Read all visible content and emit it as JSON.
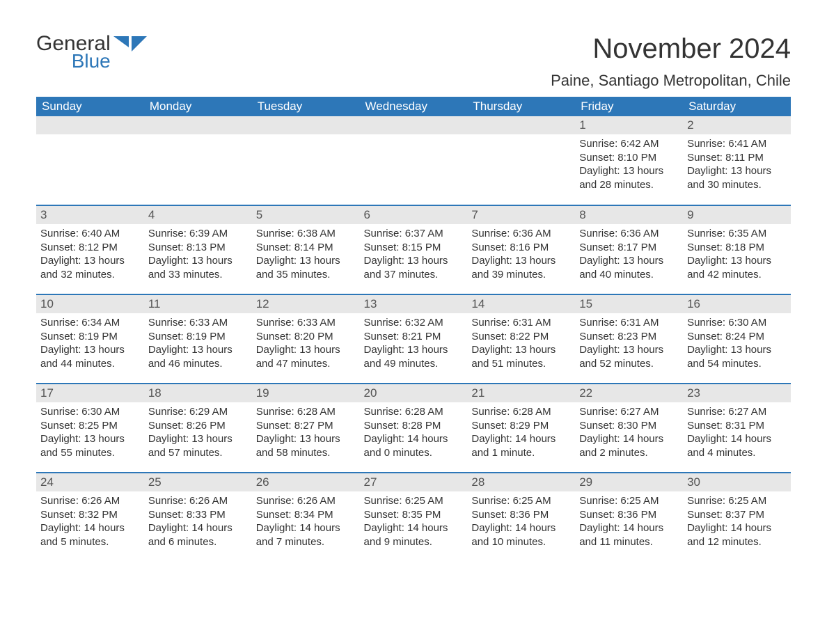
{
  "logo": {
    "line1": "General",
    "line2": "Blue",
    "flag_color": "#2d77b8",
    "text_color": "#333333"
  },
  "title": "November 2024",
  "location": "Paine, Santiago Metropolitan, Chile",
  "colors": {
    "header_bg": "#2d77b8",
    "header_text": "#ffffff",
    "daynum_bg": "#e7e7e7",
    "body_text": "#333333",
    "row_border": "#2d77b8",
    "page_bg": "#ffffff"
  },
  "fonts": {
    "title_size": 40,
    "location_size": 22,
    "header_size": 17,
    "cell_size": 15
  },
  "weekdays": [
    "Sunday",
    "Monday",
    "Tuesday",
    "Wednesday",
    "Thursday",
    "Friday",
    "Saturday"
  ],
  "weeks": [
    [
      null,
      null,
      null,
      null,
      null,
      {
        "day": "1",
        "sunrise": "Sunrise: 6:42 AM",
        "sunset": "Sunset: 8:10 PM",
        "daylight1": "Daylight: 13 hours",
        "daylight2": "and 28 minutes."
      },
      {
        "day": "2",
        "sunrise": "Sunrise: 6:41 AM",
        "sunset": "Sunset: 8:11 PM",
        "daylight1": "Daylight: 13 hours",
        "daylight2": "and 30 minutes."
      }
    ],
    [
      {
        "day": "3",
        "sunrise": "Sunrise: 6:40 AM",
        "sunset": "Sunset: 8:12 PM",
        "daylight1": "Daylight: 13 hours",
        "daylight2": "and 32 minutes."
      },
      {
        "day": "4",
        "sunrise": "Sunrise: 6:39 AM",
        "sunset": "Sunset: 8:13 PM",
        "daylight1": "Daylight: 13 hours",
        "daylight2": "and 33 minutes."
      },
      {
        "day": "5",
        "sunrise": "Sunrise: 6:38 AM",
        "sunset": "Sunset: 8:14 PM",
        "daylight1": "Daylight: 13 hours",
        "daylight2": "and 35 minutes."
      },
      {
        "day": "6",
        "sunrise": "Sunrise: 6:37 AM",
        "sunset": "Sunset: 8:15 PM",
        "daylight1": "Daylight: 13 hours",
        "daylight2": "and 37 minutes."
      },
      {
        "day": "7",
        "sunrise": "Sunrise: 6:36 AM",
        "sunset": "Sunset: 8:16 PM",
        "daylight1": "Daylight: 13 hours",
        "daylight2": "and 39 minutes."
      },
      {
        "day": "8",
        "sunrise": "Sunrise: 6:36 AM",
        "sunset": "Sunset: 8:17 PM",
        "daylight1": "Daylight: 13 hours",
        "daylight2": "and 40 minutes."
      },
      {
        "day": "9",
        "sunrise": "Sunrise: 6:35 AM",
        "sunset": "Sunset: 8:18 PM",
        "daylight1": "Daylight: 13 hours",
        "daylight2": "and 42 minutes."
      }
    ],
    [
      {
        "day": "10",
        "sunrise": "Sunrise: 6:34 AM",
        "sunset": "Sunset: 8:19 PM",
        "daylight1": "Daylight: 13 hours",
        "daylight2": "and 44 minutes."
      },
      {
        "day": "11",
        "sunrise": "Sunrise: 6:33 AM",
        "sunset": "Sunset: 8:19 PM",
        "daylight1": "Daylight: 13 hours",
        "daylight2": "and 46 minutes."
      },
      {
        "day": "12",
        "sunrise": "Sunrise: 6:33 AM",
        "sunset": "Sunset: 8:20 PM",
        "daylight1": "Daylight: 13 hours",
        "daylight2": "and 47 minutes."
      },
      {
        "day": "13",
        "sunrise": "Sunrise: 6:32 AM",
        "sunset": "Sunset: 8:21 PM",
        "daylight1": "Daylight: 13 hours",
        "daylight2": "and 49 minutes."
      },
      {
        "day": "14",
        "sunrise": "Sunrise: 6:31 AM",
        "sunset": "Sunset: 8:22 PM",
        "daylight1": "Daylight: 13 hours",
        "daylight2": "and 51 minutes."
      },
      {
        "day": "15",
        "sunrise": "Sunrise: 6:31 AM",
        "sunset": "Sunset: 8:23 PM",
        "daylight1": "Daylight: 13 hours",
        "daylight2": "and 52 minutes."
      },
      {
        "day": "16",
        "sunrise": "Sunrise: 6:30 AM",
        "sunset": "Sunset: 8:24 PM",
        "daylight1": "Daylight: 13 hours",
        "daylight2": "and 54 minutes."
      }
    ],
    [
      {
        "day": "17",
        "sunrise": "Sunrise: 6:30 AM",
        "sunset": "Sunset: 8:25 PM",
        "daylight1": "Daylight: 13 hours",
        "daylight2": "and 55 minutes."
      },
      {
        "day": "18",
        "sunrise": "Sunrise: 6:29 AM",
        "sunset": "Sunset: 8:26 PM",
        "daylight1": "Daylight: 13 hours",
        "daylight2": "and 57 minutes."
      },
      {
        "day": "19",
        "sunrise": "Sunrise: 6:28 AM",
        "sunset": "Sunset: 8:27 PM",
        "daylight1": "Daylight: 13 hours",
        "daylight2": "and 58 minutes."
      },
      {
        "day": "20",
        "sunrise": "Sunrise: 6:28 AM",
        "sunset": "Sunset: 8:28 PM",
        "daylight1": "Daylight: 14 hours",
        "daylight2": "and 0 minutes."
      },
      {
        "day": "21",
        "sunrise": "Sunrise: 6:28 AM",
        "sunset": "Sunset: 8:29 PM",
        "daylight1": "Daylight: 14 hours",
        "daylight2": "and 1 minute."
      },
      {
        "day": "22",
        "sunrise": "Sunrise: 6:27 AM",
        "sunset": "Sunset: 8:30 PM",
        "daylight1": "Daylight: 14 hours",
        "daylight2": "and 2 minutes."
      },
      {
        "day": "23",
        "sunrise": "Sunrise: 6:27 AM",
        "sunset": "Sunset: 8:31 PM",
        "daylight1": "Daylight: 14 hours",
        "daylight2": "and 4 minutes."
      }
    ],
    [
      {
        "day": "24",
        "sunrise": "Sunrise: 6:26 AM",
        "sunset": "Sunset: 8:32 PM",
        "daylight1": "Daylight: 14 hours",
        "daylight2": "and 5 minutes."
      },
      {
        "day": "25",
        "sunrise": "Sunrise: 6:26 AM",
        "sunset": "Sunset: 8:33 PM",
        "daylight1": "Daylight: 14 hours",
        "daylight2": "and 6 minutes."
      },
      {
        "day": "26",
        "sunrise": "Sunrise: 6:26 AM",
        "sunset": "Sunset: 8:34 PM",
        "daylight1": "Daylight: 14 hours",
        "daylight2": "and 7 minutes."
      },
      {
        "day": "27",
        "sunrise": "Sunrise: 6:25 AM",
        "sunset": "Sunset: 8:35 PM",
        "daylight1": "Daylight: 14 hours",
        "daylight2": "and 9 minutes."
      },
      {
        "day": "28",
        "sunrise": "Sunrise: 6:25 AM",
        "sunset": "Sunset: 8:36 PM",
        "daylight1": "Daylight: 14 hours",
        "daylight2": "and 10 minutes."
      },
      {
        "day": "29",
        "sunrise": "Sunrise: 6:25 AM",
        "sunset": "Sunset: 8:36 PM",
        "daylight1": "Daylight: 14 hours",
        "daylight2": "and 11 minutes."
      },
      {
        "day": "30",
        "sunrise": "Sunrise: 6:25 AM",
        "sunset": "Sunset: 8:37 PM",
        "daylight1": "Daylight: 14 hours",
        "daylight2": "and 12 minutes."
      }
    ]
  ]
}
